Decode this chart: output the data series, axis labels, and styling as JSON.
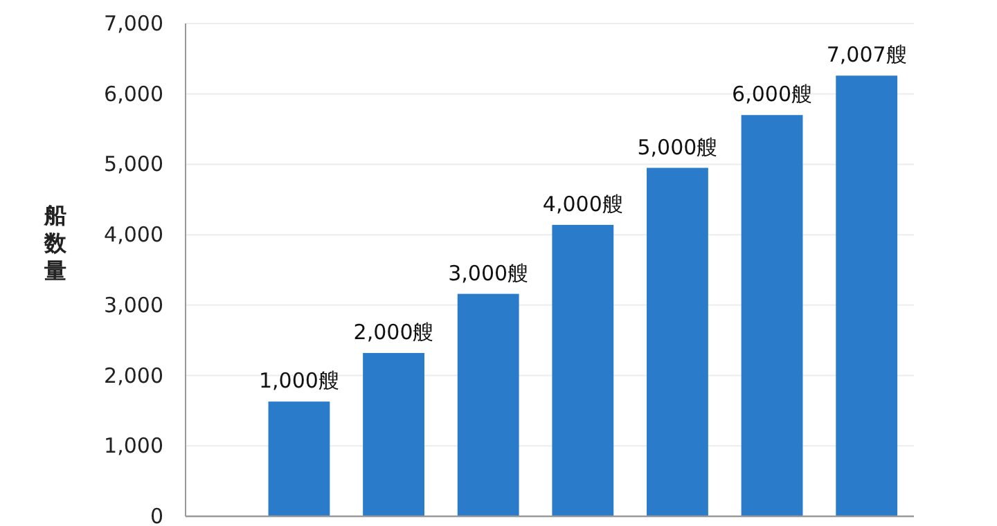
{
  "chart_data": {
    "type": "bar",
    "ylabel": "船数量",
    "categories": [
      null,
      null,
      null,
      null,
      null,
      null,
      null
    ],
    "values": [
      1630,
      2320,
      3160,
      4140,
      4950,
      5700,
      6260
    ],
    "annotations": [
      "1,000艘",
      "2,000艘",
      "3,000艘",
      "4,000艘",
      "5,000艘",
      "6,000艘",
      "7,007艘"
    ],
    "color": "#2a7bca",
    "ylim": [
      0,
      7000
    ],
    "yticks": [
      0,
      {
        "value": 1000,
        "label": "1,000"
      },
      {
        "value": 2000,
        "label": "2,000"
      },
      {
        "value": 3000,
        "label": "3,000"
      },
      {
        "value": 4000,
        "label": "4,000"
      },
      {
        "value": 5000,
        "label": "5,000"
      },
      {
        "value": 6000,
        "label": "6,000"
      },
      {
        "value": 7000,
        "label": "7,000"
      }
    ],
    "grid": "y"
  }
}
